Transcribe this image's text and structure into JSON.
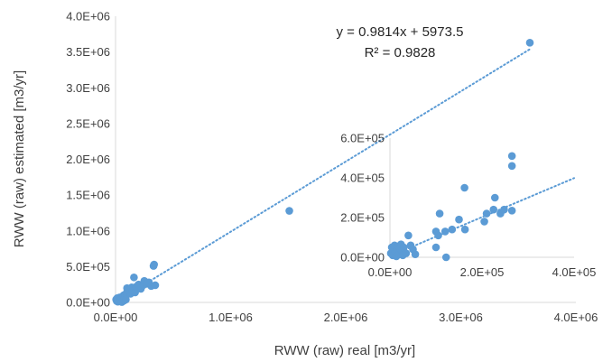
{
  "chart_data": [
    {
      "type": "scatter",
      "xlabel": "RWW (raw) real [m3/yr]",
      "ylabel": "RWW (raw) estimated [m3/yr]",
      "xlim": [
        0,
        4000000
      ],
      "ylim": [
        0,
        4000000
      ],
      "x_ticks": [
        "0.0E+00",
        "1.0E+06",
        "2.0E+06",
        "3.0E+06",
        "4.0E+06"
      ],
      "y_ticks": [
        "0.0E+00",
        "5.0E+05",
        "1.0E+06",
        "1.5E+06",
        "2.0E+06",
        "2.5E+06",
        "3.0E+06",
        "3.5E+06",
        "4.0E+06"
      ],
      "marker_color": "#5b9bd5",
      "trendline": {
        "type": "linear",
        "slope": 0.9814,
        "intercept": 5973.5,
        "style": "dotted"
      },
      "annotations": {
        "equation": "y = 0.9814x + 5973.5",
        "r_squared": "R² = 0.9828"
      },
      "grid": false,
      "points": [
        {
          "x": 5000,
          "y": 40000
        },
        {
          "x": 10000,
          "y": 20000
        },
        {
          "x": 15000,
          "y": 60000
        },
        {
          "x": 20000,
          "y": 10000
        },
        {
          "x": 25000,
          "y": 50000
        },
        {
          "x": 30000,
          "y": 30000
        },
        {
          "x": 35000,
          "y": 70000
        },
        {
          "x": 40000,
          "y": 15000
        },
        {
          "x": 45000,
          "y": 55000
        },
        {
          "x": 50000,
          "y": 35000
        },
        {
          "x": 55000,
          "y": 5000
        },
        {
          "x": 60000,
          "y": 80000
        },
        {
          "x": 65000,
          "y": 45000
        },
        {
          "x": 70000,
          "y": 100000
        },
        {
          "x": 75000,
          "y": 25000
        },
        {
          "x": 80000,
          "y": 60000
        },
        {
          "x": 85000,
          "y": 110000
        },
        {
          "x": 90000,
          "y": 40000
        },
        {
          "x": 95000,
          "y": 130000
        },
        {
          "x": 100000,
          "y": 200000
        },
        {
          "x": 110000,
          "y": 150000
        },
        {
          "x": 120000,
          "y": 180000
        },
        {
          "x": 130000,
          "y": 120000
        },
        {
          "x": 140000,
          "y": 210000
        },
        {
          "x": 150000,
          "y": 160000
        },
        {
          "x": 160000,
          "y": 350000
        },
        {
          "x": 170000,
          "y": 140000
        },
        {
          "x": 180000,
          "y": 220000
        },
        {
          "x": 200000,
          "y": 250000
        },
        {
          "x": 220000,
          "y": 190000
        },
        {
          "x": 240000,
          "y": 240000
        },
        {
          "x": 250000,
          "y": 300000
        },
        {
          "x": 270000,
          "y": 260000
        },
        {
          "x": 290000,
          "y": 280000
        },
        {
          "x": 310000,
          "y": 230000
        },
        {
          "x": 330000,
          "y": 510000
        },
        {
          "x": 335000,
          "y": 530000
        },
        {
          "x": 345000,
          "y": 240000
        },
        {
          "x": 1510000,
          "y": 1280000
        },
        {
          "x": 3600000,
          "y": 3630000
        }
      ]
    },
    {
      "type": "scatter",
      "role": "inset",
      "xlim": [
        0,
        400000
      ],
      "ylim": [
        0,
        600000
      ],
      "x_ticks": [
        "0.0E+00",
        "2.0E+05",
        "4.0E+05"
      ],
      "y_ticks": [
        "0.0E+00",
        "2.0E+05",
        "4.0E+05",
        "6.0E+05"
      ],
      "marker_color": "#5b9bd5",
      "trendline": {
        "type": "linear",
        "slope": 0.9814,
        "intercept": 5973.5,
        "style": "dotted"
      },
      "grid": false,
      "points": [
        {
          "x": 2000,
          "y": 20000
        },
        {
          "x": 4000,
          "y": 50000
        },
        {
          "x": 6000,
          "y": 10000
        },
        {
          "x": 8000,
          "y": 40000
        },
        {
          "x": 10000,
          "y": 60000
        },
        {
          "x": 12000,
          "y": 25000
        },
        {
          "x": 14000,
          "y": 5000
        },
        {
          "x": 16000,
          "y": 35000
        },
        {
          "x": 18000,
          "y": 55000
        },
        {
          "x": 20000,
          "y": 15000
        },
        {
          "x": 22000,
          "y": 45000
        },
        {
          "x": 24000,
          "y": 65000
        },
        {
          "x": 26000,
          "y": 30000
        },
        {
          "x": 28000,
          "y": 10000
        },
        {
          "x": 30000,
          "y": 50000
        },
        {
          "x": 35000,
          "y": 20000
        },
        {
          "x": 40000,
          "y": 110000
        },
        {
          "x": 45000,
          "y": 60000
        },
        {
          "x": 50000,
          "y": 40000
        },
        {
          "x": 55000,
          "y": 15000
        },
        {
          "x": 100000,
          "y": 130000
        },
        {
          "x": 100000,
          "y": 50000
        },
        {
          "x": 105000,
          "y": 110000
        },
        {
          "x": 108000,
          "y": 220000
        },
        {
          "x": 120000,
          "y": 130000
        },
        {
          "x": 122000,
          "y": 0
        },
        {
          "x": 135000,
          "y": 140000
        },
        {
          "x": 150000,
          "y": 190000
        },
        {
          "x": 162000,
          "y": 350000
        },
        {
          "x": 163000,
          "y": 140000
        },
        {
          "x": 205000,
          "y": 180000
        },
        {
          "x": 210000,
          "y": 220000
        },
        {
          "x": 225000,
          "y": 240000
        },
        {
          "x": 228000,
          "y": 300000
        },
        {
          "x": 240000,
          "y": 220000
        },
        {
          "x": 248000,
          "y": 240000
        },
        {
          "x": 265000,
          "y": 510000
        },
        {
          "x": 265000,
          "y": 460000
        },
        {
          "x": 265000,
          "y": 235000
        }
      ]
    }
  ]
}
